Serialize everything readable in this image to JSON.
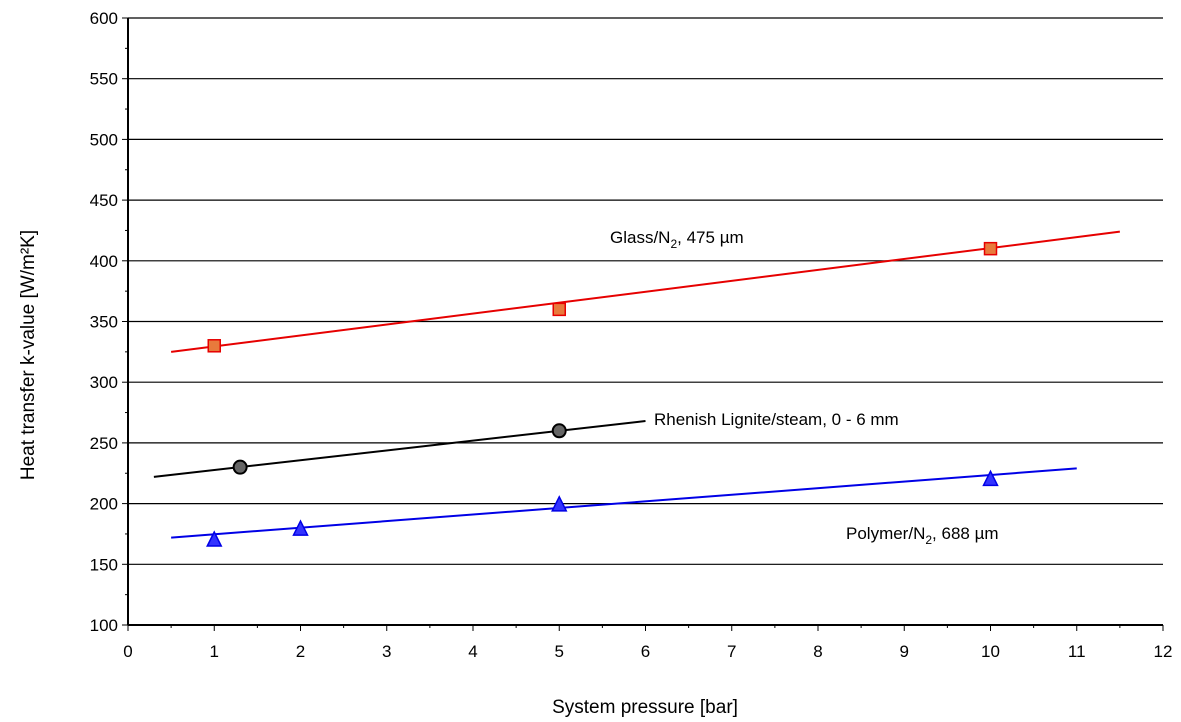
{
  "chart_data": {
    "type": "scatter",
    "xlabel": "System pressure [bar]",
    "ylabel": "Heat transfer k-value  [W/m²K]",
    "xlim": [
      0,
      12
    ],
    "ylim": [
      100,
      600
    ],
    "x_ticks": [
      0,
      1,
      2,
      3,
      4,
      5,
      6,
      7,
      8,
      9,
      10,
      11,
      12
    ],
    "y_ticks": [
      100,
      150,
      200,
      250,
      300,
      350,
      400,
      450,
      500,
      550,
      600
    ],
    "horizontal_grid": true,
    "vertical_grid": false,
    "legend": "none",
    "series": [
      {
        "label_main": "Glass/N",
        "label_sub": "2",
        "label_rest": ",  475 µm",
        "marker": "square",
        "color": "#e60000",
        "marker_fill": "#e87a3c",
        "points": [
          [
            1,
            330
          ],
          [
            5,
            360
          ],
          [
            10,
            410
          ]
        ],
        "trend": [
          [
            0.5,
            325
          ],
          [
            11.5,
            424
          ]
        ]
      },
      {
        "label_main": "Rhenish Lignite/steam, 0 - 6 mm",
        "label_sub": "",
        "label_rest": "",
        "marker": "circle",
        "color": "#000000",
        "marker_fill": "#666666",
        "points": [
          [
            1.3,
            230
          ],
          [
            5,
            260
          ]
        ],
        "trend": [
          [
            0.3,
            222
          ],
          [
            6,
            268
          ]
        ]
      },
      {
        "label_main": "Polymer/N",
        "label_sub": "2",
        "label_rest": ",  688  µm",
        "marker": "triangle",
        "color": "#0000e6",
        "marker_fill": "#3333ff",
        "points": [
          [
            1,
            170
          ],
          [
            2,
            179
          ],
          [
            5,
            199
          ],
          [
            10,
            220
          ]
        ],
        "trend": [
          [
            0.5,
            172
          ],
          [
            11,
            229
          ]
        ]
      }
    ]
  }
}
